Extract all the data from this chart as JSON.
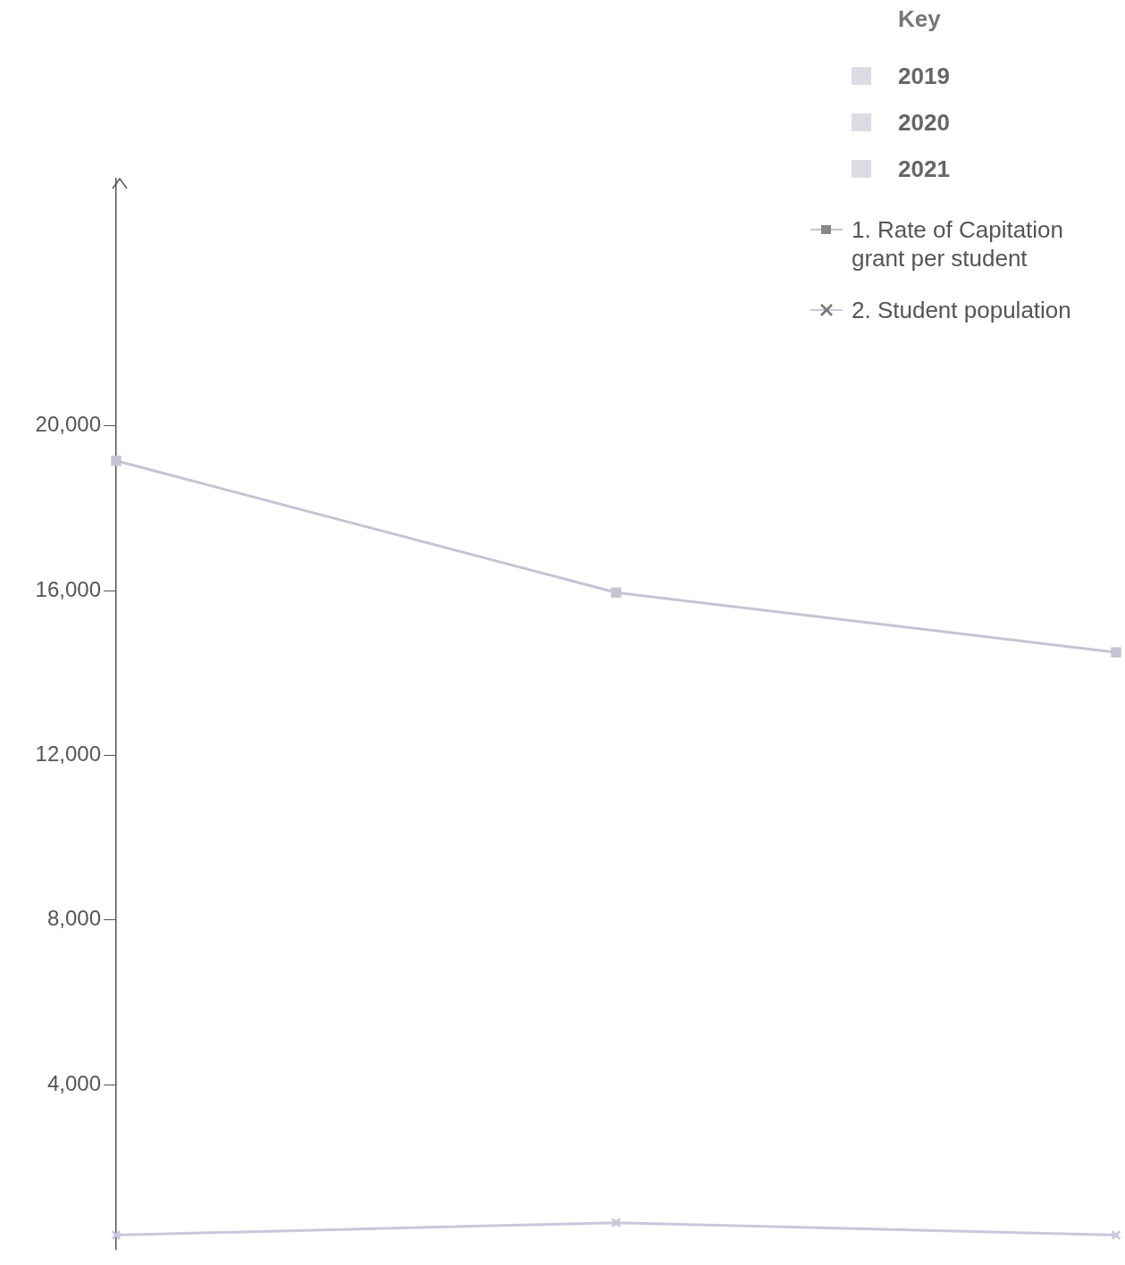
{
  "chart_data": {
    "type": "line",
    "legend_title": "Key",
    "annotations": [
      "2019",
      "2020",
      "2021"
    ],
    "categories": [
      null,
      null,
      null
    ],
    "series": [
      {
        "name": "1. Rate of Capitation grant per student",
        "color": "#c4c4d4",
        "values": [
          19150,
          15950,
          14500
        ],
        "marker": "square"
      },
      {
        "name": "2. Student population",
        "color": "#c8c8dc",
        "values": [
          350,
          650,
          350
        ],
        "marker": "cross"
      }
    ],
    "ylim": [
      0,
      26000
    ],
    "yticks": [
      {
        "value": 4000,
        "label": "4,000"
      },
      {
        "value": 8000,
        "label": "8,000"
      },
      {
        "value": 12000,
        "label": "12,000"
      },
      {
        "value": 16000,
        "label": "16,000"
      },
      {
        "value": 20000,
        "label": "20,000"
      }
    ],
    "grid": false,
    "legend": "top right",
    "tick_labels": "y"
  }
}
